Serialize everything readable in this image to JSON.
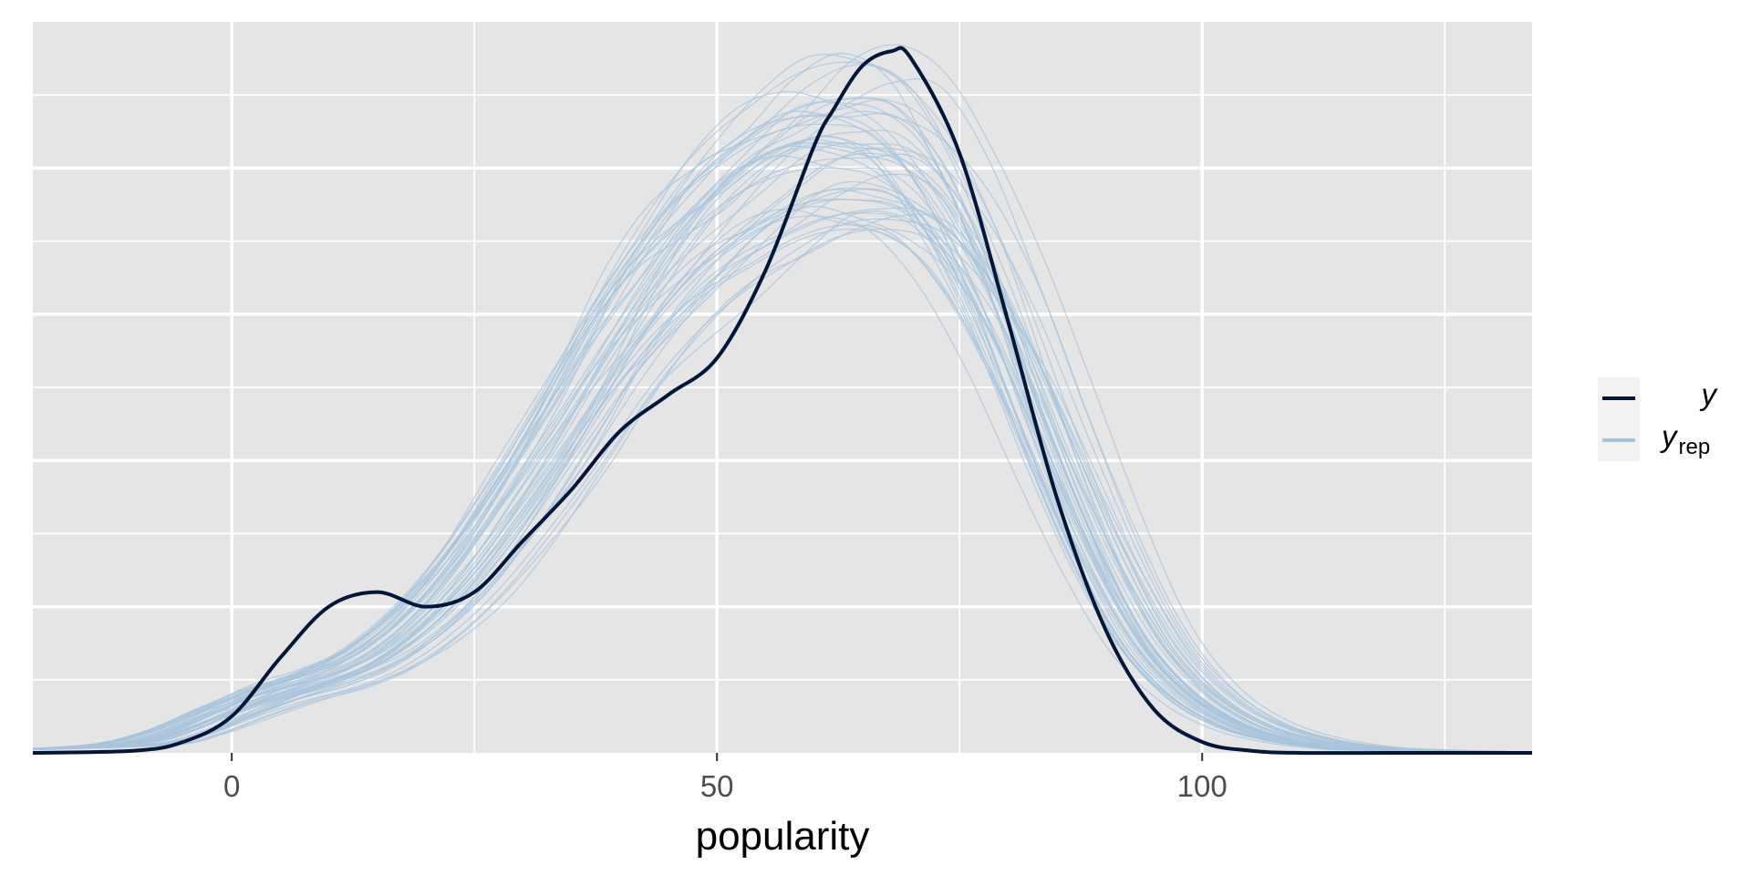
{
  "chart_data": {
    "type": "line",
    "xlabel": "popularity",
    "ylabel": "",
    "xlim": [
      -20.5,
      134
    ],
    "ylim": [
      0,
      1
    ],
    "x_ticks": [
      0,
      50,
      100
    ],
    "x_tick_labels": [
      "0",
      "50",
      "100"
    ],
    "grid": true,
    "legend_position": "right",
    "colors": {
      "panel": "#e5e5e5",
      "grid": "#ffffff",
      "y": "#011638",
      "y_rep": "#a8c4dc"
    },
    "series": [
      {
        "name": "y",
        "x": [
          -20.5,
          -10,
          -5,
          0,
          5,
          10,
          15,
          20,
          25,
          30,
          35,
          40,
          45,
          50,
          55,
          60,
          62,
          65,
          68,
          70,
          75,
          80,
          85,
          90,
          95,
          100,
          105,
          110,
          120,
          134
        ],
        "y": [
          0,
          0.003,
          0.015,
          0.05,
          0.13,
          0.2,
          0.22,
          0.2,
          0.22,
          0.29,
          0.36,
          0.44,
          0.49,
          0.54,
          0.66,
          0.83,
          0.88,
          0.94,
          0.96,
          0.95,
          0.82,
          0.59,
          0.35,
          0.17,
          0.06,
          0.015,
          0.003,
          0,
          0,
          0
        ]
      },
      {
        "name": "y_rep",
        "label_base": "y",
        "label_sub": "rep",
        "x": [
          -20.5,
          -10,
          -5,
          0,
          5,
          10,
          15,
          20,
          25,
          30,
          35,
          40,
          45,
          50,
          55,
          60,
          65,
          70,
          75,
          80,
          85,
          90,
          95,
          100,
          105,
          110,
          115,
          120,
          134
        ],
        "y": [
          0.005,
          0.012,
          0.028,
          0.055,
          0.08,
          0.1,
          0.13,
          0.18,
          0.25,
          0.34,
          0.44,
          0.55,
          0.64,
          0.71,
          0.76,
          0.8,
          0.81,
          0.79,
          0.71,
          0.58,
          0.42,
          0.27,
          0.15,
          0.078,
          0.038,
          0.018,
          0.008,
          0.004,
          0.001
        ]
      }
    ]
  }
}
